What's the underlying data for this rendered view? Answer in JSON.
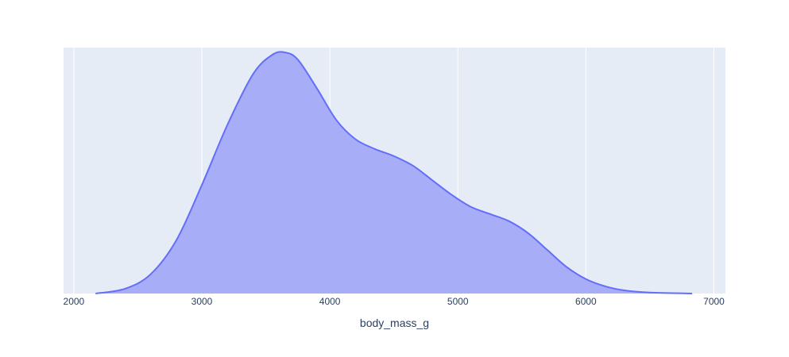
{
  "chart_data": {
    "type": "area",
    "title": "",
    "xlabel": "body_mass_g",
    "ylabel": "",
    "xlim": [
      1920,
      7090
    ],
    "ylim": [
      0,
      1.02
    ],
    "grid": "vertical",
    "legend": "none",
    "x_ticks": [
      2000,
      3000,
      4000,
      5000,
      6000,
      7000
    ],
    "x_tick_labels": [
      "2000",
      "3000",
      "4000",
      "5000",
      "6000",
      "7000"
    ],
    "series": [
      {
        "x": [
          2170,
          2400,
          2600,
          2800,
          3000,
          3200,
          3400,
          3550,
          3650,
          3750,
          3900,
          4050,
          4200,
          4350,
          4500,
          4650,
          4800,
          4950,
          5100,
          5250,
          5400,
          5550,
          5700,
          5850,
          6000,
          6150,
          6300,
          6500,
          6830
        ],
        "y": [
          0.0,
          0.02,
          0.08,
          0.22,
          0.45,
          0.7,
          0.91,
          0.99,
          1.0,
          0.97,
          0.85,
          0.72,
          0.64,
          0.6,
          0.57,
          0.53,
          0.47,
          0.41,
          0.36,
          0.33,
          0.3,
          0.25,
          0.18,
          0.11,
          0.06,
          0.03,
          0.013,
          0.004,
          0.0
        ]
      }
    ],
    "colors": {
      "plot_bg": "#e5ecf6",
      "grid": "#ffffff",
      "line": "#636efa",
      "fill": "#a3abf7",
      "text": "#2a3f5f"
    }
  }
}
